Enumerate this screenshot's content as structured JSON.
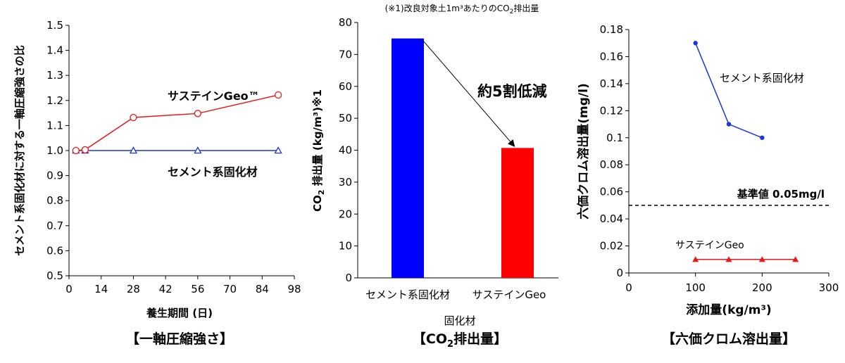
{
  "chart_data": [
    {
      "type": "line",
      "caption": "【一軸圧縮強さ】",
      "ylabel": "セメント系固化材に対する一軸圧縮強さの比",
      "xlabel": "養生期間 (日)",
      "xlim": [
        0,
        98
      ],
      "ylim": [
        0.5,
        1.5
      ],
      "xticks": [
        "0",
        "14",
        "28",
        "42",
        "56",
        "70",
        "84",
        "98"
      ],
      "yticks": [
        "0.5",
        "0.6",
        "0.7",
        "0.8",
        "0.9",
        "1.0",
        "1.1",
        "1.2",
        "1.3",
        "1.4",
        "1.5"
      ],
      "grid": "none",
      "series": [
        {
          "name": "サステインGeo™",
          "color": "#e8191b",
          "marker": "circle",
          "x": [
            3,
            7,
            28,
            56,
            91
          ],
          "y": [
            1.0,
            1.003,
            1.132,
            1.148,
            1.222
          ]
        },
        {
          "name": "セメント系固化材",
          "color": "#1f35d6",
          "marker": "triangle",
          "x": [
            3,
            7,
            28,
            56,
            91
          ],
          "y": [
            1.0,
            1.0,
            1.0,
            1.0,
            1.0
          ]
        }
      ],
      "labels": [
        {
          "text": "サステインGeo™",
          "series": 0
        },
        {
          "text": "セメント系固化材",
          "series": 1
        }
      ]
    },
    {
      "type": "bar",
      "caption_main": "【CO",
      "caption_sub": "2",
      "caption_end": "排出量】",
      "note_prefix": "(※1)改良対象土1m³あたりのCO",
      "note_sub": "2",
      "note_suffix": "排出量",
      "ylabel_prefix": "CO",
      "ylabel_sub": "2",
      "ylabel_suffix": " 排出量 (kg/m³)※1",
      "xlabel": "固化材",
      "ylim": [
        0,
        80
      ],
      "yticks": [
        "0",
        "10",
        "20",
        "30",
        "40",
        "50",
        "60",
        "70",
        "80"
      ],
      "categories": [
        "セメント系固化材",
        "サステインGeo"
      ],
      "values": [
        75,
        40.7
      ],
      "colors": [
        "#0000ff",
        "#ff0000"
      ],
      "annotation": "約5割低減"
    },
    {
      "type": "scatter",
      "caption": "【六価クロム溶出量】",
      "ylabel": "六価クロム溶出量(mg/l)",
      "xlabel": "添加量(kg/m³)",
      "xlim": [
        0,
        300
      ],
      "ylim": [
        0,
        0.18
      ],
      "xticks": [
        "0",
        "100",
        "200",
        "300"
      ],
      "yticks": [
        "0",
        "0.02",
        "0.04",
        "0.06",
        "0.08",
        "0.1",
        "0.12",
        "0.14",
        "0.16",
        "0.18"
      ],
      "series": [
        {
          "name": "セメント系固化材",
          "color": "#1f35d6",
          "marker": "circle",
          "x": [
            100,
            150,
            200
          ],
          "y": [
            0.17,
            0.11,
            0.1
          ]
        },
        {
          "name": "サステインGeo",
          "color": "#e8191b",
          "marker": "triangle",
          "x": [
            100,
            150,
            200,
            250
          ],
          "y": [
            0.01,
            0.01,
            0.01,
            0.01
          ]
        }
      ],
      "reference_line": {
        "y": 0.05,
        "label": "基準値 0.05mg/l"
      },
      "labels": [
        {
          "text": "セメント系固化材",
          "series": 0
        },
        {
          "text": "サステインGeo",
          "series": 1
        }
      ]
    }
  ]
}
